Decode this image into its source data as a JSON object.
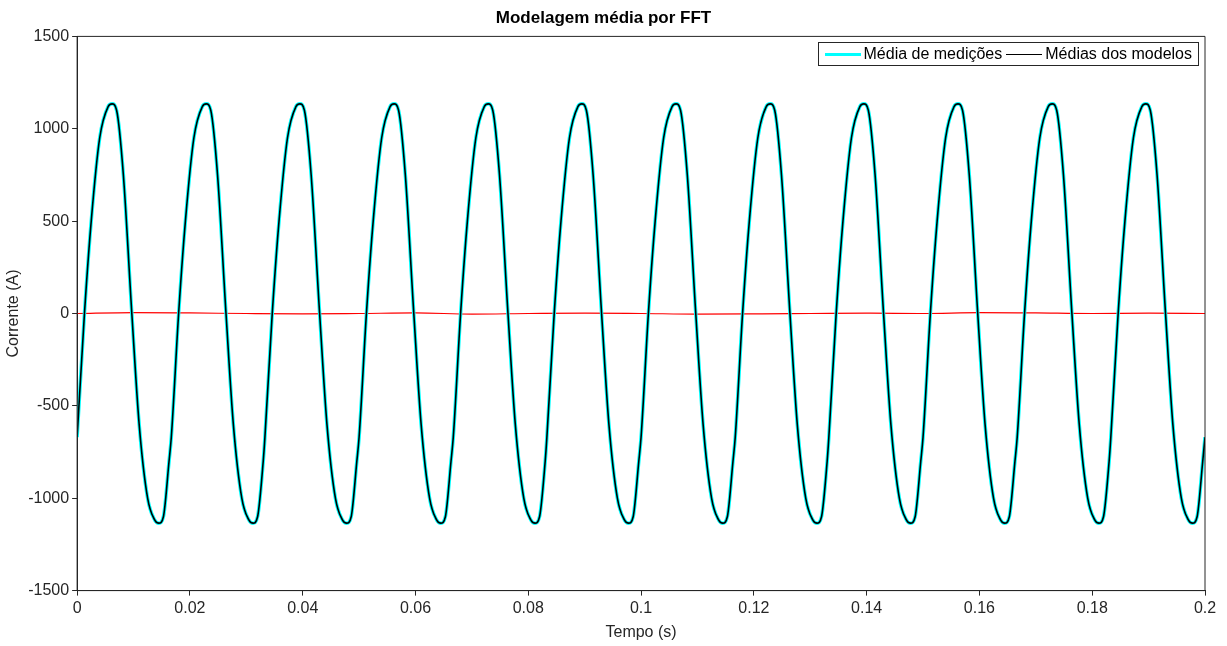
{
  "chart_data": {
    "type": "line",
    "title": "Modelagem média por FFT",
    "xlabel": "Tempo (s)",
    "ylabel": "Corrente (A)",
    "x": [
      0,
      0.0013,
      0.0025,
      0.004,
      0.0055,
      0.0062,
      0.007,
      0.0082,
      0.0097,
      0.011,
      0.0125,
      0.0138,
      0.0145,
      0.0153,
      0.0163,
      0.0167,
      0.018,
      0.0192,
      0.0207,
      0.0222,
      0.0229,
      0.0237,
      0.0249,
      0.0264,
      0.0277,
      0.0292,
      0.0305,
      0.0312,
      0.032,
      0.033,
      0.0333,
      0.0346,
      0.0358,
      0.0373,
      0.0388,
      0.0395,
      0.0403,
      0.0415,
      0.043,
      0.0443,
      0.0458,
      0.0471,
      0.0478,
      0.0486,
      0.0496,
      0.05,
      0.0513,
      0.0525,
      0.054,
      0.0555,
      0.0562,
      0.057,
      0.0582,
      0.0597,
      0.061,
      0.0625,
      0.0638,
      0.0645,
      0.0653,
      0.0663,
      0.0667,
      0.068,
      0.0692,
      0.0707,
      0.0722,
      0.0729,
      0.0737,
      0.0749,
      0.0764,
      0.0777,
      0.0792,
      0.0805,
      0.0812,
      0.082,
      0.083,
      0.0833,
      0.0846,
      0.0858,
      0.0873,
      0.0888,
      0.0895,
      0.0903,
      0.0915,
      0.093,
      0.0943,
      0.0958,
      0.0971,
      0.0978,
      0.0986,
      0.0996,
      0.1,
      0.1013,
      0.1025,
      0.104,
      0.1055,
      0.1062,
      0.107,
      0.1082,
      0.1097,
      0.111,
      0.1125,
      0.1138,
      0.1145,
      0.1153,
      0.1163,
      0.1167,
      0.118,
      0.1192,
      0.1207,
      0.1222,
      0.1229,
      0.1237,
      0.1249,
      0.1264,
      0.1277,
      0.1292,
      0.1305,
      0.1312,
      0.132,
      0.133,
      0.1333,
      0.1346,
      0.1358,
      0.1373,
      0.1388,
      0.1395,
      0.1403,
      0.1415,
      0.143,
      0.1443,
      0.1458,
      0.1471,
      0.1478,
      0.1486,
      0.1496,
      0.15,
      0.1513,
      0.1525,
      0.154,
      0.1555,
      0.1562,
      0.157,
      0.1582,
      0.1597,
      0.161,
      0.1625,
      0.1638,
      0.1645,
      0.1653,
      0.1663,
      0.1667,
      0.168,
      0.1692,
      0.1707,
      0.1722,
      0.1729,
      0.1737,
      0.1749,
      0.1764,
      0.1777,
      0.1792,
      0.1805,
      0.1812,
      0.182,
      0.183,
      0.1833,
      0.1846,
      0.1858,
      0.1873,
      0.1888,
      0.1895,
      0.1903,
      0.1915,
      0.193,
      0.1943,
      0.1958,
      0.1971,
      0.1978,
      0.1986,
      0.1996,
      0.2
    ],
    "series": [
      {
        "color": "#ff0000",
        "x": [
          0,
          0.01,
          0.02,
          0.03,
          0.04,
          0.05,
          0.06,
          0.07,
          0.08,
          0.09,
          0.1,
          0.11,
          0.12,
          0.13,
          0.14,
          0.15,
          0.16,
          0.17,
          0.18,
          0.19,
          0.2
        ],
        "values": [
          0,
          5,
          3,
          0,
          -2,
          0,
          3,
          -3,
          0,
          2,
          0,
          -3,
          -2,
          0,
          2,
          0,
          5,
          3,
          0,
          2,
          0
        ]
      },
      {
        "name": "Média de medições",
        "color": "#00ffff",
        "values": [
          -670,
          0,
          500,
          950,
          1120,
          1135,
          1100,
          750,
          0,
          -600,
          -1000,
          -1120,
          -1135,
          -1100,
          -800,
          -670,
          0,
          500,
          950,
          1120,
          1135,
          1100,
          750,
          0,
          -600,
          -1000,
          -1120,
          -1135,
          -1100,
          -800,
          -670,
          0,
          500,
          950,
          1120,
          1135,
          1100,
          750,
          0,
          -600,
          -1000,
          -1120,
          -1135,
          -1100,
          -800,
          -670,
          0,
          500,
          950,
          1120,
          1135,
          1100,
          750,
          0,
          -600,
          -1000,
          -1120,
          -1135,
          -1100,
          -800,
          -670,
          0,
          500,
          950,
          1120,
          1135,
          1100,
          750,
          0,
          -600,
          -1000,
          -1120,
          -1135,
          -1100,
          -800,
          -670,
          0,
          500,
          950,
          1120,
          1135,
          1100,
          750,
          0,
          -600,
          -1000,
          -1120,
          -1135,
          -1100,
          -800,
          -670,
          0,
          500,
          950,
          1120,
          1135,
          1100,
          750,
          0,
          -600,
          -1000,
          -1120,
          -1135,
          -1100,
          -800,
          -670,
          0,
          500,
          950,
          1120,
          1135,
          1100,
          750,
          0,
          -600,
          -1000,
          -1120,
          -1135,
          -1100,
          -800,
          -670,
          0,
          500,
          950,
          1120,
          1135,
          1100,
          750,
          0,
          -600,
          -1000,
          -1120,
          -1135,
          -1100,
          -800,
          -670,
          0,
          500,
          950,
          1120,
          1135,
          1100,
          750,
          0,
          -600,
          -1000,
          -1120,
          -1135,
          -1100,
          -800,
          -670,
          0,
          500,
          950,
          1120,
          1135,
          1100,
          750,
          0,
          -600,
          -1000,
          -1120,
          -1135,
          -1100,
          -800,
          -670,
          0,
          500,
          950,
          1120,
          1135,
          1100,
          750,
          0,
          -600,
          -1000,
          -1120,
          -1135,
          -1100,
          -800,
          -670
        ]
      },
      {
        "name": "Médias dos modelos",
        "color": "#000000",
        "values": [
          -670,
          0,
          500,
          950,
          1120,
          1135,
          1100,
          750,
          0,
          -600,
          -1000,
          -1120,
          -1135,
          -1100,
          -800,
          -670,
          0,
          500,
          950,
          1120,
          1135,
          1100,
          750,
          0,
          -600,
          -1000,
          -1120,
          -1135,
          -1100,
          -800,
          -670,
          0,
          500,
          950,
          1120,
          1135,
          1100,
          750,
          0,
          -600,
          -1000,
          -1120,
          -1135,
          -1100,
          -800,
          -670,
          0,
          500,
          950,
          1120,
          1135,
          1100,
          750,
          0,
          -600,
          -1000,
          -1120,
          -1135,
          -1100,
          -800,
          -670,
          0,
          500,
          950,
          1120,
          1135,
          1100,
          750,
          0,
          -600,
          -1000,
          -1120,
          -1135,
          -1100,
          -800,
          -670,
          0,
          500,
          950,
          1120,
          1135,
          1100,
          750,
          0,
          -600,
          -1000,
          -1120,
          -1135,
          -1100,
          -800,
          -670,
          0,
          500,
          950,
          1120,
          1135,
          1100,
          750,
          0,
          -600,
          -1000,
          -1120,
          -1135,
          -1100,
          -800,
          -670,
          0,
          500,
          950,
          1120,
          1135,
          1100,
          750,
          0,
          -600,
          -1000,
          -1120,
          -1135,
          -1100,
          -800,
          -670,
          0,
          500,
          950,
          1120,
          1135,
          1100,
          750,
          0,
          -600,
          -1000,
          -1120,
          -1135,
          -1100,
          -800,
          -670,
          0,
          500,
          950,
          1120,
          1135,
          1100,
          750,
          0,
          -600,
          -1000,
          -1120,
          -1135,
          -1100,
          -800,
          -670,
          0,
          500,
          950,
          1120,
          1135,
          1100,
          750,
          0,
          -600,
          -1000,
          -1120,
          -1135,
          -1100,
          -800,
          -670,
          0,
          500,
          950,
          1120,
          1135,
          1100,
          750,
          0,
          -600,
          -1000,
          -1120,
          -1135,
          -1100,
          -800,
          -670
        ]
      }
    ],
    "xlim": [
      0,
      0.2
    ],
    "ylim": [
      -1500,
      1500
    ],
    "xticks": [
      0,
      0.02,
      0.04,
      0.06,
      0.08,
      0.1,
      0.12,
      0.14,
      0.16,
      0.18,
      0.2
    ],
    "yticks": [
      -1500,
      -1000,
      -500,
      0,
      500,
      1000,
      1500
    ],
    "legend": "top right",
    "grid": false
  }
}
